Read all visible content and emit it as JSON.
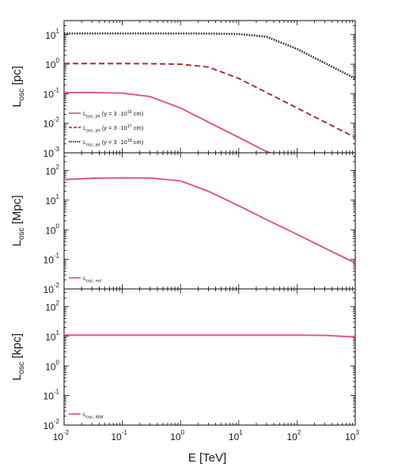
{
  "chart_data": [
    {
      "type": "line",
      "ylabel": {
        "main": "L",
        "sub": "osc",
        "unit": "[pc]"
      },
      "yscale": "log",
      "ylim": [
        0.001,
        30
      ],
      "ytick_decades": [
        -3,
        -2,
        -1,
        0,
        1
      ],
      "xscale": "log",
      "xlim": [
        0.01,
        1000
      ],
      "legend_placement": "lower-left",
      "series": [
        {
          "legend": {
            "main": "L",
            "sub": "osc, jet",
            "note": "(y = 3 ·10",
            "exp": "16",
            "tail": " cm)"
          },
          "color": "#e0457b",
          "dash": "solid",
          "x": [
            0.01,
            0.03,
            0.1,
            0.3,
            1,
            3,
            10,
            30,
            35
          ],
          "y": [
            0.11,
            0.11,
            0.105,
            0.08,
            0.033,
            0.011,
            0.0033,
            0.0011,
            0.001
          ]
        },
        {
          "legend": {
            "main": "L",
            "sub": "osc, jet",
            "note": "(y = 3 ·10",
            "exp": "17",
            "tail": " cm)"
          },
          "color": "#a31b1b",
          "dash": "dashed",
          "x": [
            0.01,
            0.1,
            0.3,
            1,
            3,
            10,
            30,
            100,
            300,
            1000
          ],
          "y": [
            1.05,
            1.05,
            1.04,
            1.0,
            0.8,
            0.33,
            0.11,
            0.033,
            0.011,
            0.0033
          ]
        },
        {
          "legend": {
            "main": "L",
            "sub": "osc, jet",
            "note": "(y = 3 ·10",
            "exp": "18",
            "tail": " cm)"
          },
          "color": "#111111",
          "dash": "dotted",
          "x": [
            0.01,
            1,
            3,
            10,
            30,
            100,
            300,
            1000
          ],
          "y": [
            11,
            11,
            10.9,
            10.5,
            8.5,
            3.3,
            1.1,
            0.33
          ]
        }
      ]
    },
    {
      "type": "line",
      "ylabel": {
        "main": "L",
        "sub": "osc",
        "unit": "[Mpc]"
      },
      "yscale": "log",
      "ylim": [
        0.01,
        400
      ],
      "ytick_decades": [
        -2,
        -1,
        0,
        1,
        2
      ],
      "xscale": "log",
      "xlim": [
        0.01,
        1000
      ],
      "legend_placement": "lower-left",
      "series": [
        {
          "legend": {
            "main": "L",
            "sub": "osc, ext"
          },
          "color": "#e0457b",
          "dash": "solid",
          "x": [
            0.01,
            0.03,
            0.1,
            0.3,
            1,
            3,
            10,
            30,
            100,
            300,
            1000
          ],
          "y": [
            50,
            55,
            57,
            56,
            45,
            20,
            6.5,
            2.2,
            0.7,
            0.24,
            0.075
          ]
        }
      ]
    },
    {
      "type": "line",
      "ylabel": {
        "main": "L",
        "sub": "osc",
        "unit": "[kpc]"
      },
      "xlabel": "E [TeV]",
      "yscale": "log",
      "ylim": [
        0.01,
        400
      ],
      "ytick_decades": [
        -2,
        -1,
        0,
        1,
        2
      ],
      "xscale": "log",
      "xlim": [
        0.01,
        1000
      ],
      "xtick_decades": [
        -2,
        -1,
        0,
        1,
        2,
        3
      ],
      "legend_placement": "lower-left",
      "series": [
        {
          "legend": {
            "main": "L",
            "sub": "osc, MW"
          },
          "color": "#e0457b",
          "dash": "solid",
          "x": [
            0.01,
            1,
            10,
            100,
            300,
            1000
          ],
          "y": [
            11,
            11,
            11,
            11,
            10.8,
            9.5
          ]
        }
      ]
    }
  ]
}
